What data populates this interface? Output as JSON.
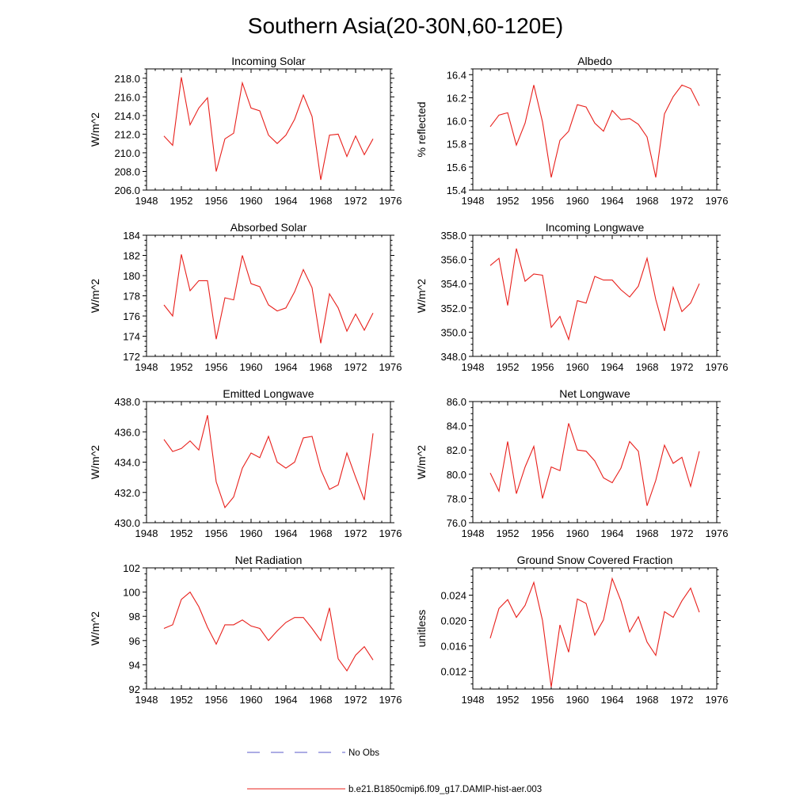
{
  "figure": {
    "title": "Southern Asia(20-30N,60-120E)"
  },
  "legend": {
    "obs_label": "No Obs",
    "obs_color": "#5a5ac8",
    "model_label": "b.e21.B1850cmip6.f09_g17.DAMIP-hist-aer.003",
    "model_color": "#e8201c"
  },
  "chart_data": [
    {
      "type": "line",
      "title": "Incoming Solar",
      "xlabel": "",
      "ylabel": "W/m^2",
      "xlim": [
        1948,
        1976
      ],
      "ylim": [
        206.0,
        219.0
      ],
      "xticks": [
        1948,
        1952,
        1956,
        1960,
        1964,
        1968,
        1972,
        1976
      ],
      "yticks": [
        206.0,
        208.0,
        210.0,
        212.0,
        214.0,
        216.0,
        218.0
      ],
      "ytick_labels": [
        "206.0",
        "208.0",
        "210.0",
        "212.0",
        "214.0",
        "216.0",
        "218.0"
      ],
      "x": [
        1950,
        1951,
        1952,
        1953,
        1954,
        1955,
        1956,
        1957,
        1958,
        1959,
        1960,
        1961,
        1962,
        1963,
        1964,
        1965,
        1966,
        1967,
        1968,
        1969,
        1970,
        1971,
        1972,
        1973,
        1974
      ],
      "series": [
        {
          "values": [
            211.8,
            210.8,
            218.1,
            213.0,
            214.8,
            215.9,
            208.0,
            211.5,
            212.1,
            217.5,
            214.8,
            214.5,
            211.9,
            211.0,
            211.9,
            213.6,
            216.2,
            213.9,
            207.1,
            211.9,
            212.0,
            209.6,
            211.8,
            209.8,
            211.5
          ]
        }
      ]
    },
    {
      "type": "line",
      "title": "Albedo",
      "xlabel": "",
      "ylabel": "% reflected",
      "xlim": [
        1948,
        1976
      ],
      "ylim": [
        15.4,
        16.45
      ],
      "xticks": [
        1948,
        1952,
        1956,
        1960,
        1964,
        1968,
        1972,
        1976
      ],
      "yticks": [
        15.4,
        15.6,
        15.8,
        16.0,
        16.2,
        16.4
      ],
      "ytick_labels": [
        "15.4",
        "15.6",
        "15.8",
        "16.0",
        "16.2",
        "16.4"
      ],
      "x": [
        1950,
        1951,
        1952,
        1953,
        1954,
        1955,
        1956,
        1957,
        1958,
        1959,
        1960,
        1961,
        1962,
        1963,
        1964,
        1965,
        1966,
        1967,
        1968,
        1969,
        1970,
        1971,
        1972,
        1973,
        1974
      ],
      "series": [
        {
          "values": [
            15.95,
            16.05,
            16.07,
            15.79,
            15.98,
            16.31,
            15.99,
            15.51,
            15.83,
            15.91,
            16.14,
            16.12,
            15.98,
            15.91,
            16.09,
            16.01,
            16.02,
            15.97,
            15.86,
            15.51,
            16.06,
            16.21,
            16.31,
            16.28,
            16.13
          ]
        }
      ]
    },
    {
      "type": "line",
      "title": "Absorbed Solar",
      "xlabel": "",
      "ylabel": "W/m^2",
      "xlim": [
        1948,
        1976
      ],
      "ylim": [
        172,
        184
      ],
      "xticks": [
        1948,
        1952,
        1956,
        1960,
        1964,
        1968,
        1972,
        1976
      ],
      "yticks": [
        172,
        174,
        176,
        178,
        180,
        182,
        184
      ],
      "ytick_labels": [
        "172",
        "174",
        "176",
        "178",
        "180",
        "182",
        "184"
      ],
      "x": [
        1950,
        1951,
        1952,
        1953,
        1954,
        1955,
        1956,
        1957,
        1958,
        1959,
        1960,
        1961,
        1962,
        1963,
        1964,
        1965,
        1966,
        1967,
        1968,
        1969,
        1970,
        1971,
        1972,
        1973,
        1974
      ],
      "series": [
        {
          "values": [
            177.1,
            176.0,
            182.1,
            178.5,
            179.5,
            179.5,
            173.7,
            177.8,
            177.6,
            182.0,
            179.2,
            178.9,
            177.1,
            176.5,
            176.8,
            178.4,
            180.6,
            178.8,
            173.3,
            178.2,
            176.8,
            174.5,
            176.2,
            174.6,
            176.3
          ]
        }
      ]
    },
    {
      "type": "line",
      "title": "Incoming Longwave",
      "xlabel": "",
      "ylabel": "W/m^2",
      "xlim": [
        1948,
        1976
      ],
      "ylim": [
        348.0,
        358.0
      ],
      "xticks": [
        1948,
        1952,
        1956,
        1960,
        1964,
        1968,
        1972,
        1976
      ],
      "yticks": [
        348.0,
        350.0,
        352.0,
        354.0,
        356.0,
        358.0
      ],
      "ytick_labels": [
        "348.0",
        "350.0",
        "352.0",
        "354.0",
        "356.0",
        "358.0"
      ],
      "x": [
        1950,
        1951,
        1952,
        1953,
        1954,
        1955,
        1956,
        1957,
        1958,
        1959,
        1960,
        1961,
        1962,
        1963,
        1964,
        1965,
        1966,
        1967,
        1968,
        1969,
        1970,
        1971,
        1972,
        1973,
        1974
      ],
      "series": [
        {
          "values": [
            355.5,
            356.1,
            352.2,
            356.9,
            354.2,
            354.8,
            354.7,
            350.4,
            351.3,
            349.4,
            352.6,
            352.4,
            354.6,
            354.3,
            354.3,
            353.5,
            352.9,
            353.8,
            356.1,
            352.7,
            350.1,
            353.7,
            351.7,
            352.4,
            354.0
          ]
        }
      ]
    },
    {
      "type": "line",
      "title": "Emitted Longwave",
      "xlabel": "",
      "ylabel": "W/m^2",
      "xlim": [
        1948,
        1976
      ],
      "ylim": [
        430.0,
        438.0
      ],
      "xticks": [
        1948,
        1952,
        1956,
        1960,
        1964,
        1968,
        1972,
        1976
      ],
      "yticks": [
        430.0,
        432.0,
        434.0,
        436.0,
        438.0
      ],
      "ytick_labels": [
        "430.0",
        "432.0",
        "434.0",
        "436.0",
        "438.0"
      ],
      "x": [
        1950,
        1951,
        1952,
        1953,
        1954,
        1955,
        1956,
        1957,
        1958,
        1959,
        1960,
        1961,
        1962,
        1963,
        1964,
        1965,
        1966,
        1967,
        1968,
        1969,
        1970,
        1971,
        1972,
        1973,
        1974
      ],
      "series": [
        {
          "values": [
            435.5,
            434.7,
            434.9,
            435.4,
            434.8,
            437.1,
            432.7,
            431.0,
            431.7,
            433.6,
            434.6,
            434.3,
            435.7,
            434.0,
            433.6,
            434.0,
            435.6,
            435.7,
            433.5,
            432.2,
            432.5,
            434.6,
            433.0,
            431.5,
            435.9
          ]
        }
      ]
    },
    {
      "type": "line",
      "title": "Net Longwave",
      "xlabel": "",
      "ylabel": "W/m^2",
      "xlim": [
        1948,
        1976
      ],
      "ylim": [
        76.0,
        86.0
      ],
      "xticks": [
        1948,
        1952,
        1956,
        1960,
        1964,
        1968,
        1972,
        1976
      ],
      "yticks": [
        76.0,
        78.0,
        80.0,
        82.0,
        84.0,
        86.0
      ],
      "ytick_labels": [
        "76.0",
        "78.0",
        "80.0",
        "82.0",
        "84.0",
        "86.0"
      ],
      "x": [
        1950,
        1951,
        1952,
        1953,
        1954,
        1955,
        1956,
        1957,
        1958,
        1959,
        1960,
        1961,
        1962,
        1963,
        1964,
        1965,
        1966,
        1967,
        1968,
        1969,
        1970,
        1971,
        1972,
        1973,
        1974
      ],
      "series": [
        {
          "values": [
            80.1,
            78.6,
            82.7,
            78.4,
            80.6,
            82.3,
            78.0,
            80.6,
            80.3,
            84.2,
            82.0,
            81.9,
            81.1,
            79.7,
            79.3,
            80.5,
            82.7,
            81.9,
            77.4,
            79.5,
            82.4,
            80.9,
            81.4,
            79.0,
            81.9
          ]
        }
      ]
    },
    {
      "type": "line",
      "title": "Net Radiation",
      "xlabel": "",
      "ylabel": "W/m^2",
      "xlim": [
        1948,
        1976
      ],
      "ylim": [
        92,
        102
      ],
      "xticks": [
        1948,
        1952,
        1956,
        1960,
        1964,
        1968,
        1972,
        1976
      ],
      "yticks": [
        92,
        94,
        96,
        98,
        100,
        102
      ],
      "ytick_labels": [
        "92",
        "94",
        "96",
        "98",
        "100",
        "102"
      ],
      "x": [
        1950,
        1951,
        1952,
        1953,
        1954,
        1955,
        1956,
        1957,
        1958,
        1959,
        1960,
        1961,
        1962,
        1963,
        1964,
        1965,
        1966,
        1967,
        1968,
        1969,
        1970,
        1971,
        1972,
        1973,
        1974
      ],
      "series": [
        {
          "values": [
            97.0,
            97.3,
            99.4,
            100.0,
            98.8,
            97.1,
            95.7,
            97.3,
            97.3,
            97.7,
            97.2,
            97.0,
            96.0,
            96.8,
            97.5,
            97.9,
            97.9,
            97.0,
            96.0,
            98.7,
            94.5,
            93.5,
            94.8,
            95.5,
            94.4
          ]
        }
      ]
    },
    {
      "type": "line",
      "title": "Ground Snow Covered Fraction",
      "xlabel": "",
      "ylabel": "unitless",
      "xlim": [
        1948,
        1976
      ],
      "ylim": [
        0.0092,
        0.0283
      ],
      "xticks": [
        1948,
        1952,
        1956,
        1960,
        1964,
        1968,
        1972,
        1976
      ],
      "yticks": [
        0.012,
        0.016,
        0.02,
        0.024
      ],
      "ytick_labels": [
        "0.012",
        "0.016",
        "0.020",
        "0.024"
      ],
      "x": [
        1950,
        1951,
        1952,
        1953,
        1954,
        1955,
        1956,
        1957,
        1958,
        1959,
        1960,
        1961,
        1962,
        1963,
        1964,
        1965,
        1966,
        1967,
        1968,
        1969,
        1970,
        1971,
        1972,
        1973,
        1974
      ],
      "series": [
        {
          "values": [
            0.0172,
            0.0219,
            0.0233,
            0.0205,
            0.0224,
            0.026,
            0.02,
            0.0095,
            0.0193,
            0.015,
            0.0234,
            0.0227,
            0.0177,
            0.0201,
            0.0266,
            0.0231,
            0.0182,
            0.0206,
            0.0166,
            0.0145,
            0.0214,
            0.0205,
            0.0231,
            0.0251,
            0.0213
          ]
        }
      ]
    }
  ]
}
